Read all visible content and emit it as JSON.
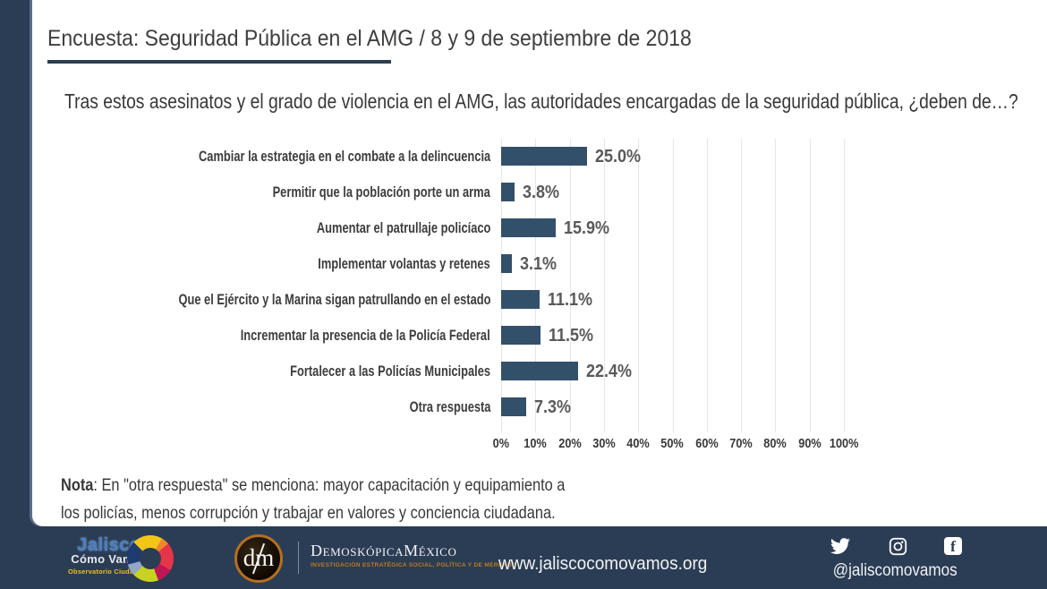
{
  "slide": {
    "title": "Encuesta: Seguridad Pública en el AMG / 8 y 9 de septiembre de 2018",
    "question": "Tras estos asesinatos y el grado de violencia en el AMG, las autoridades encargadas de la seguridad pública, ¿deben de…?"
  },
  "chart_data": {
    "type": "bar",
    "orientation": "horizontal",
    "categories": [
      "Cambiar la estrategia en el combate a la delincuencia",
      "Permitir que la población porte un arma",
      "Aumentar el patrullaje policíaco",
      "Implementar volantas y retenes",
      "Que el Ejército y la Marina sigan patrullando en el estado",
      "Incrementar la presencia de la Policía Federal",
      "Fortalecer a las Policías Municipales",
      "Otra respuesta"
    ],
    "values": [
      25.0,
      3.8,
      15.9,
      3.1,
      11.1,
      11.5,
      22.4,
      7.3
    ],
    "value_labels": [
      "25.0%",
      "3.8%",
      "15.9%",
      "3.1%",
      "11.1%",
      "11.5%",
      "22.4%",
      "7.3%"
    ],
    "x_tick_labels": [
      "0%",
      "10%",
      "20%",
      "30%",
      "40%",
      "50%",
      "60%",
      "70%",
      "80%",
      "90%",
      "100%"
    ],
    "xlim": [
      0,
      100
    ],
    "grid": true,
    "legend": false,
    "title": "",
    "xlabel": "",
    "ylabel": "",
    "bar_color": "#33506B",
    "value_label_color": "#595959",
    "gridline_color": "#E7E7E7"
  },
  "note": {
    "bold": "Nota",
    "line1_rest": ": En \"otra respuesta\" se menciona: mayor capacitación y equipamiento a",
    "line2": "los policías, menos corrupción y trabajar en valores y conciencia ciudadana."
  },
  "footer": {
    "jalisco_logo": {
      "name": "Jalisco",
      "line2": "Cómo Vamos",
      "line3": "Observatorio Ciudadano"
    },
    "demoskopica": {
      "monogram": "dm",
      "name": "DemoskópicaMéxico",
      "tagline": "INVESTIGACIÓN ESTRATÉGICA SOCIAL, POLÍTICA Y DE MERCADO"
    },
    "website": "www.jaliscocomovamos.org",
    "social_handle": "@jaliscomovamos",
    "facebook_glyph": "f",
    "colors": {
      "background": "#2B3D55",
      "accent_orange": "#B4701F"
    }
  }
}
